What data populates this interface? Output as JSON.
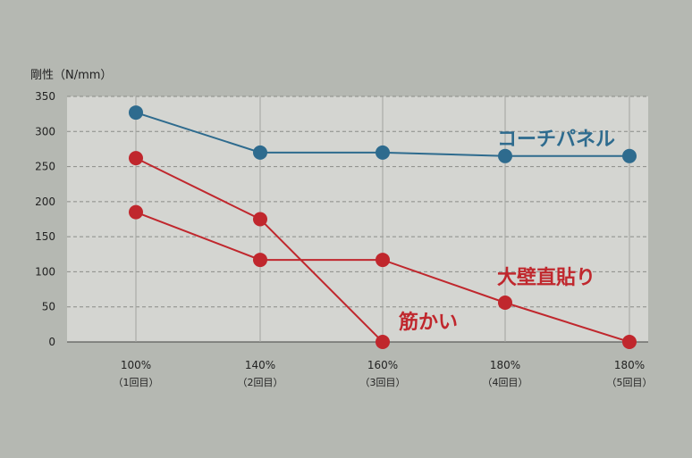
{
  "chart_data": {
    "type": "line",
    "ylabel": "剛性（N/mm）",
    "ylim": [
      0,
      350
    ],
    "yticks": [
      0,
      50,
      100,
      150,
      200,
      250,
      300,
      350
    ],
    "grid": true,
    "categories": [
      "100%",
      "140%",
      "160%",
      "180%",
      "180%"
    ],
    "subcategories": [
      "（1回目）",
      "（2回目）",
      "（3回目）",
      "（4回目）",
      "（5回目）"
    ],
    "series": [
      {
        "name": "コーチパネル",
        "color": "#2e6b8e",
        "values": [
          327,
          270,
          270,
          265,
          265
        ]
      },
      {
        "name": "大壁直貼り",
        "color": "#c0272d",
        "values": [
          185,
          117,
          117,
          56,
          0
        ]
      },
      {
        "name": "筋かい",
        "color": "#c0272d",
        "values": [
          262,
          175,
          0,
          null,
          null
        ]
      }
    ]
  }
}
